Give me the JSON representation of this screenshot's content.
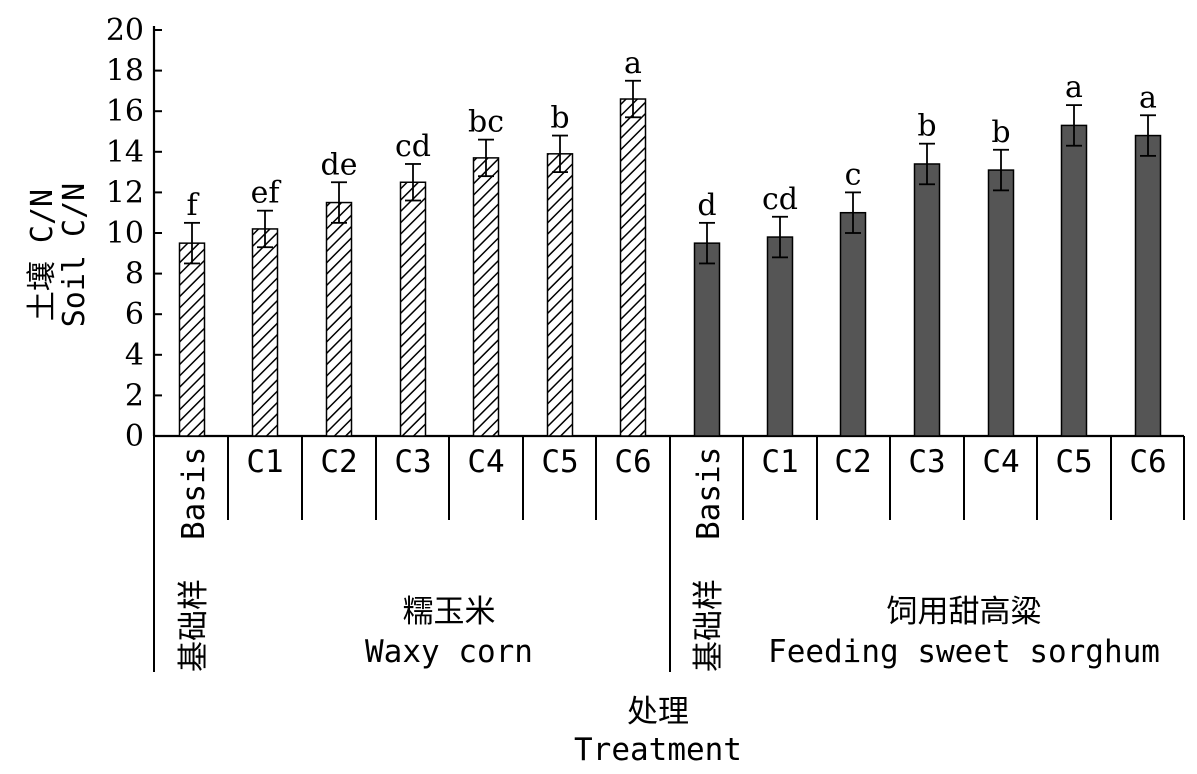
{
  "chart_data": {
    "type": "bar",
    "ylabel_zh": "土壤 C/N",
    "ylabel_en": "Soil C/N",
    "xlabel_zh": "处理",
    "xlabel_en": "Treatment",
    "ylim": [
      0,
      20
    ],
    "yticks": [
      0,
      2,
      4,
      6,
      8,
      10,
      12,
      14,
      16,
      18,
      20
    ],
    "groups": [
      {
        "name_zh": "糯玉米",
        "name_en": "Waxy corn",
        "basis_zh": "基础样",
        "basis_en": "Basis",
        "fill": "hatched",
        "categories": [
          "Basis",
          "C1",
          "C2",
          "C3",
          "C4",
          "C5",
          "C6"
        ],
        "values": [
          9.5,
          10.2,
          11.5,
          12.5,
          13.7,
          13.9,
          16.6
        ],
        "errors": [
          1.0,
          0.9,
          1.0,
          0.9,
          0.9,
          0.9,
          0.9
        ],
        "letters": [
          "f",
          "ef",
          "de",
          "cd",
          "bc",
          "b",
          "a"
        ]
      },
      {
        "name_zh": "饲用甜高粱",
        "name_en": "Feeding sweet sorghum",
        "basis_zh": "基础样",
        "basis_en": "Basis",
        "fill": "solid",
        "categories": [
          "Basis",
          "C1",
          "C2",
          "C3",
          "C4",
          "C5",
          "C6"
        ],
        "values": [
          9.5,
          9.8,
          11.0,
          13.4,
          13.1,
          15.3,
          14.8
        ],
        "errors": [
          1.0,
          1.0,
          1.0,
          1.0,
          1.0,
          1.0,
          1.0
        ],
        "letters": [
          "d",
          "cd",
          "c",
          "b",
          "b",
          "a",
          "a"
        ]
      }
    ],
    "colors": {
      "solid_fill": "#555555",
      "hatch_stroke": "#000000",
      "bar_outline": "#000000"
    },
    "grid": false
  }
}
